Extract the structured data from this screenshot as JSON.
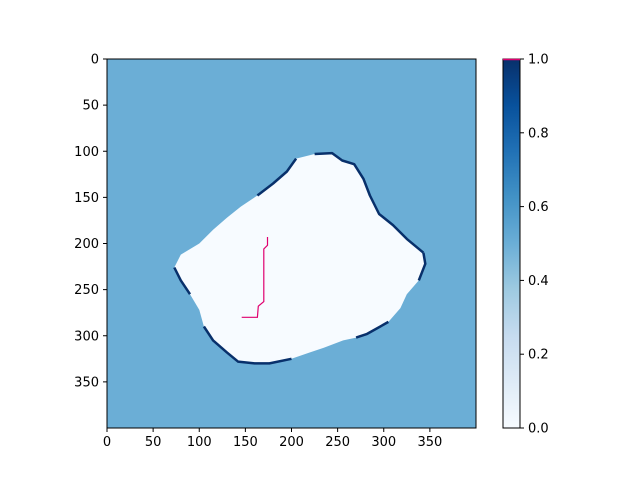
{
  "chart_data": {
    "type": "heatmap",
    "title": "",
    "xlabel": "",
    "ylabel": "",
    "xlim": [
      0,
      400
    ],
    "ylim": [
      400,
      0
    ],
    "x_ticks": [
      0,
      50,
      100,
      150,
      200,
      250,
      300,
      350
    ],
    "y_ticks": [
      0,
      50,
      100,
      150,
      200,
      250,
      300,
      350
    ],
    "colormap": "Blues",
    "colorbar": {
      "min": 0.0,
      "max": 1.0,
      "ticks": [
        "0.0",
        "0.2",
        "0.4",
        "0.6",
        "0.8",
        "1.0"
      ],
      "tick_values": [
        0.0,
        0.2,
        0.4,
        0.6,
        0.8,
        1.0
      ]
    },
    "background_value": 0.5,
    "free_space_value": 0.0,
    "obstacle_value": 1.0,
    "free_region_polygon": [
      [
        205,
        108
      ],
      [
        225,
        103
      ],
      [
        244,
        102
      ],
      [
        255,
        110
      ],
      [
        268,
        114
      ],
      [
        278,
        130
      ],
      [
        285,
        148
      ],
      [
        295,
        168
      ],
      [
        310,
        180
      ],
      [
        325,
        195
      ],
      [
        343,
        210
      ],
      [
        345,
        222
      ],
      [
        338,
        240
      ],
      [
        325,
        255
      ],
      [
        318,
        270
      ],
      [
        305,
        285
      ],
      [
        282,
        298
      ],
      [
        270,
        302
      ],
      [
        256,
        305
      ],
      [
        235,
        313
      ],
      [
        220,
        318
      ],
      [
        200,
        325
      ],
      [
        176,
        330
      ],
      [
        160,
        330
      ],
      [
        142,
        328
      ],
      [
        130,
        318
      ],
      [
        115,
        305
      ],
      [
        105,
        290
      ],
      [
        100,
        272
      ],
      [
        90,
        255
      ],
      [
        80,
        240
      ],
      [
        73,
        226
      ],
      [
        80,
        212
      ],
      [
        100,
        200
      ],
      [
        115,
        185
      ],
      [
        130,
        172
      ],
      [
        145,
        160
      ],
      [
        163,
        148
      ],
      [
        180,
        135
      ],
      [
        195,
        122
      ]
    ],
    "obstacle_edges": [
      [
        [
          225,
          103
        ],
        [
          244,
          102
        ],
        [
          255,
          110
        ],
        [
          268,
          114
        ],
        [
          278,
          130
        ],
        [
          285,
          148
        ],
        [
          295,
          168
        ],
        [
          310,
          180
        ],
        [
          325,
          195
        ],
        [
          343,
          210
        ]
      ],
      [
        [
          343,
          210
        ],
        [
          345,
          222
        ],
        [
          338,
          240
        ]
      ],
      [
        [
          305,
          285
        ],
        [
          282,
          298
        ],
        [
          270,
          302
        ]
      ],
      [
        [
          200,
          325
        ],
        [
          176,
          330
        ],
        [
          160,
          330
        ],
        [
          142,
          328
        ],
        [
          130,
          318
        ],
        [
          115,
          305
        ],
        [
          105,
          290
        ]
      ],
      [
        [
          90,
          255
        ],
        [
          80,
          240
        ],
        [
          73,
          226
        ]
      ],
      [
        [
          163,
          148
        ],
        [
          180,
          135
        ],
        [
          195,
          122
        ],
        [
          205,
          108
        ]
      ]
    ],
    "path": [
      [
        146,
        280
      ],
      [
        163,
        280
      ],
      [
        164,
        268
      ],
      [
        170,
        263
      ],
      [
        170,
        206
      ],
      [
        174,
        202
      ],
      [
        174,
        193
      ]
    ],
    "path_color": "#e0006f",
    "colors": {
      "background": "#6baed6",
      "free": "#f7fbff",
      "obstacle": "#08306b",
      "ray": "#c6dbef"
    }
  }
}
